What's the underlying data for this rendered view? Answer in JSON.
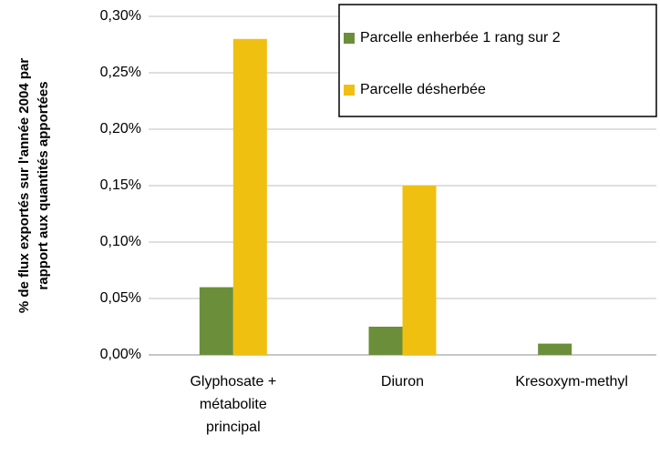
{
  "chart_data": {
    "type": "bar",
    "y_label": [
      "% de flux exportés sur l'année 2004 par",
      "rapport aux quantités apportées"
    ],
    "categories": [
      "Glyphosate + métabolite principal",
      "Diuron",
      "Kresoxym-methyl"
    ],
    "series": [
      {
        "name": "Parcelle enherbée 1 rang sur 2",
        "color": "#6b8e3a",
        "values": [
          0.06,
          0.025,
          0.01
        ]
      },
      {
        "name": "Parcelle désherbée",
        "color": "#f0c010",
        "values": [
          0.28,
          0.15,
          0
        ]
      }
    ],
    "ylim": [
      0,
      0.3
    ],
    "yticks": [
      {
        "value": 0,
        "label": "0,00%"
      },
      {
        "value": 0.05,
        "label": "0,05%"
      },
      {
        "value": 0.1,
        "label": "0,10%"
      },
      {
        "value": 0.15,
        "label": "0,15%"
      },
      {
        "value": 0.2,
        "label": "0,20%"
      },
      {
        "value": 0.25,
        "label": "0,25%"
      },
      {
        "value": 0.3,
        "label": "0,30%"
      }
    ],
    "grid": true
  }
}
